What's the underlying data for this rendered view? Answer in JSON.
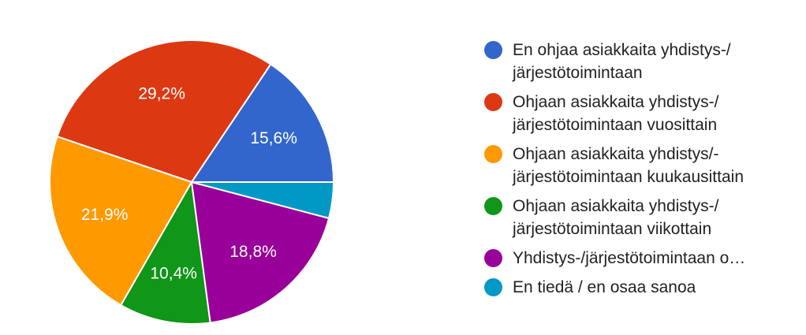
{
  "chart_data": {
    "type": "pie",
    "start_angle_deg": 90,
    "direction": "counterclockwise",
    "slices": [
      {
        "label": "En ohjaa asiakkaita yhdistys-/ järjestötoimintaan",
        "value": 15.6,
        "value_label": "15,6%",
        "color": "#3366cc"
      },
      {
        "label": "Ohjaan asiakkaita yhdistys-/ järjestötoimintaan vuosittain",
        "value": 29.2,
        "value_label": "29,2%",
        "color": "#dc3912"
      },
      {
        "label": "Ohjaan asiakkaita yhdistys/- järjestötoimintaan kuukausittain",
        "value": 21.9,
        "value_label": "21,9%",
        "color": "#ff9900"
      },
      {
        "label": "Ohjaan asiakkaita yhdistys-/ järjestötoimintaan viikottain",
        "value": 10.4,
        "value_label": "10,4%",
        "color": "#109618"
      },
      {
        "label": "Yhdistys-/järjestötoimintaan o…",
        "value": 18.8,
        "value_label": "18,8%",
        "color": "#990099"
      },
      {
        "label": "En tiedä / en osaa sanoa",
        "value": 4.1,
        "value_label": "",
        "color": "#0099c6"
      }
    ],
    "legend": {
      "placement": "right",
      "items": [
        {
          "line1": "En ohjaa asiakkaita yhdistys-/",
          "line2": "järjestötoimintaan"
        },
        {
          "line1": "Ohjaan asiakkaita yhdistys-/",
          "line2": "järjestötoimintaan vuosittain"
        },
        {
          "line1": "Ohjaan asiakkaita yhdistys/-",
          "line2": "järjestötoimintaan kuukausittain"
        },
        {
          "line1": "Ohjaan asiakkaita yhdistys-/",
          "line2": "järjestötoimintaan viikottain"
        },
        {
          "line1": "Yhdistys-/järjestötoimintaan o…",
          "line2": ""
        },
        {
          "line1": "En tiedä / en osaa sanoa",
          "line2": ""
        }
      ]
    }
  }
}
